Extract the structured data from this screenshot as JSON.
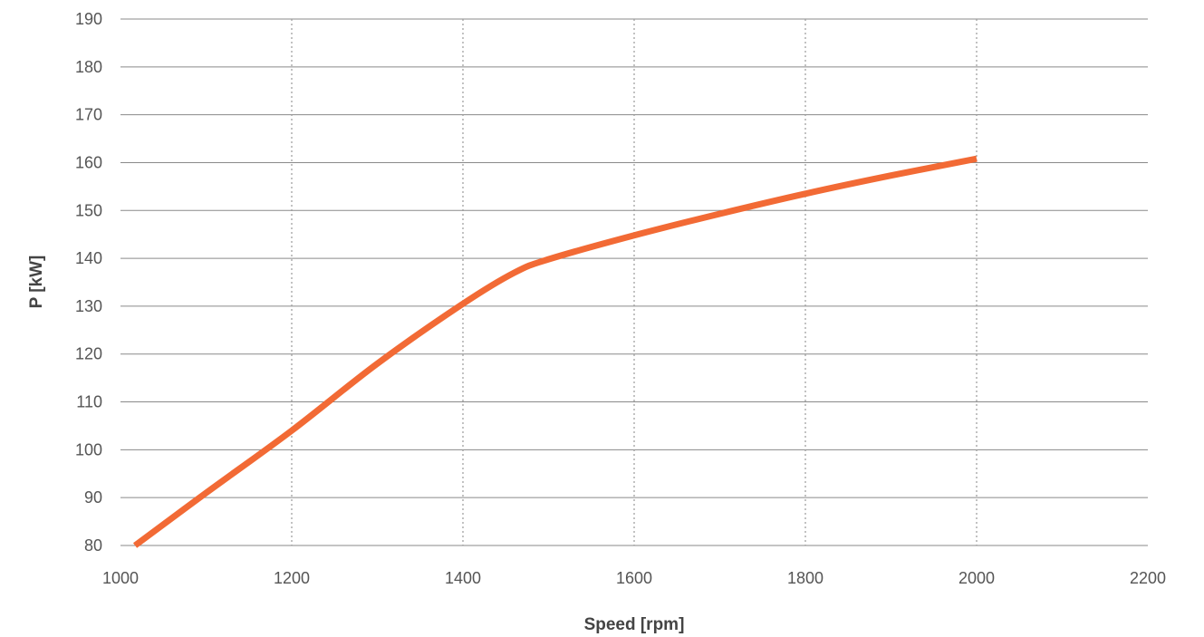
{
  "chart_data": {
    "type": "line",
    "title": "",
    "xlabel": "Speed [rpm]",
    "ylabel": "P [kW]",
    "xlim": [
      1000,
      2200
    ],
    "ylim": [
      80,
      190
    ],
    "x_ticks": [
      "1000",
      "1200",
      "1400",
      "1600",
      "1800",
      "2000",
      "2200"
    ],
    "y_ticks": [
      "80",
      "90",
      "100",
      "110",
      "120",
      "130",
      "140",
      "150",
      "160",
      "170",
      "180",
      "190"
    ],
    "grid": {
      "horizontal": "solid",
      "vertical": "dotted"
    },
    "legend": "none",
    "series": [
      {
        "color": "#F26A35",
        "x": [
          1017,
          1100,
          1200,
          1300,
          1400,
          1460,
          1500,
          1600,
          1700,
          1800,
          1900,
          2000
        ],
        "y": [
          80,
          91,
          104,
          118,
          130.5,
          137,
          139.8,
          144.8,
          149.3,
          153.5,
          157.3,
          160.8
        ]
      }
    ]
  }
}
